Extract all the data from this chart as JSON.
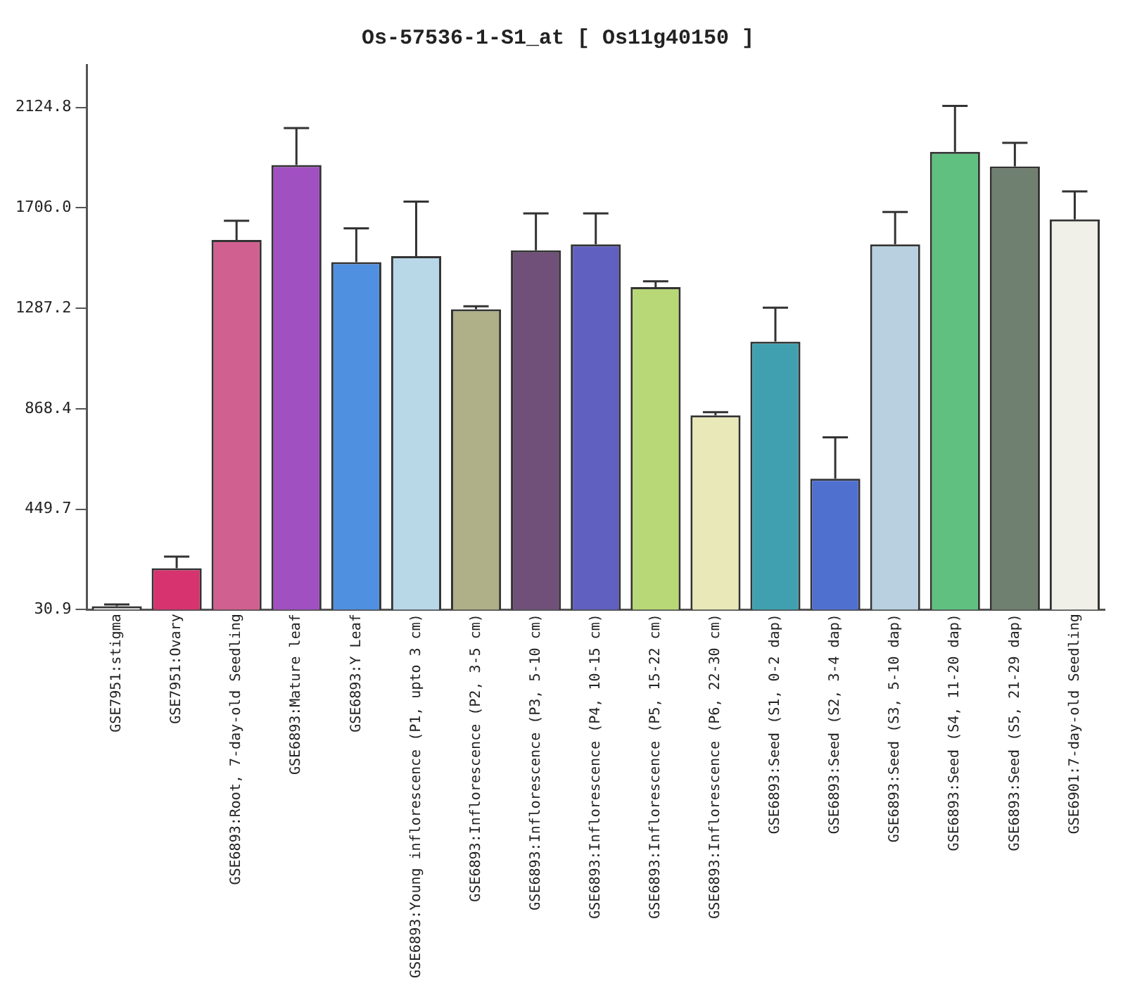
{
  "chart_data": {
    "type": "bar",
    "title": "Os-57536-1-S1_at [ Os11g40150 ]",
    "categories": [
      "GSE7951:stigma",
      "GSE7951:Ovary",
      "GSE6893:Root, 7-day-old Seedling",
      "GSE6893:Mature leaf",
      "GSE6893:Y Leaf",
      "GSE6893:Young inflorescence (P1, upto 3 cm)",
      "GSE6893:Inflorescence (P2, 3-5 cm)",
      "GSE6893:Inflorescence (P3, 5-10 cm)",
      "GSE6893:Inflorescence (P4, 10-15 cm)",
      "GSE6893:Inflorescence (P5, 15-22 cm)",
      "GSE6893:Inflorescence (P6, 22-30 cm)",
      "GSE6893:Seed (S1, 0-2 dap)",
      "GSE6893:Seed (S2, 3-4 dap)",
      "GSE6893:Seed (S3, 5-10 dap)",
      "GSE6893:Seed (S4, 11-20 dap)",
      "GSE6893:Seed (S5, 21-29 dap)",
      "GSE6901:7-day-old Seedling"
    ],
    "values": [
      45,
      203,
      1572,
      1885,
      1480,
      1505,
      1283,
      1529,
      1554,
      1376,
      841,
      1148,
      577,
      1554,
      1940,
      1879,
      1658
    ],
    "errors": [
      [
        45,
        52
      ],
      [
        203,
        252
      ],
      [
        1572,
        1652
      ],
      [
        1885,
        2039
      ],
      [
        1480,
        1621
      ],
      [
        1505,
        1732
      ],
      [
        1283,
        1296
      ],
      [
        1529,
        1683
      ],
      [
        1554,
        1683
      ],
      [
        1376,
        1400
      ],
      [
        841,
        854
      ],
      [
        1148,
        1290
      ],
      [
        577,
        749
      ],
      [
        1554,
        1689
      ],
      [
        1940,
        2131
      ],
      [
        1879,
        1977
      ],
      [
        1658,
        1775
      ]
    ],
    "colors": [
      "#e0e0e0",
      "#d6336f",
      "#d06090",
      "#a050c0",
      "#5090e0",
      "#b8d8e8",
      "#b0b088",
      "#705078",
      "#6060c0",
      "#b8d878",
      "#e8e8b8",
      "#40a0b0",
      "#5070d0",
      "#b8d0e0",
      "#60c080",
      "#708070",
      "#f0f0e8"
    ],
    "ylim": [
      30.9,
      2303
    ],
    "yticks": [
      30.9,
      449.7,
      868.4,
      1287.2,
      {
        "value": 1706.0,
        "label": "1706.0"
      },
      2124.8
    ],
    "grid": false,
    "legend": false
  }
}
